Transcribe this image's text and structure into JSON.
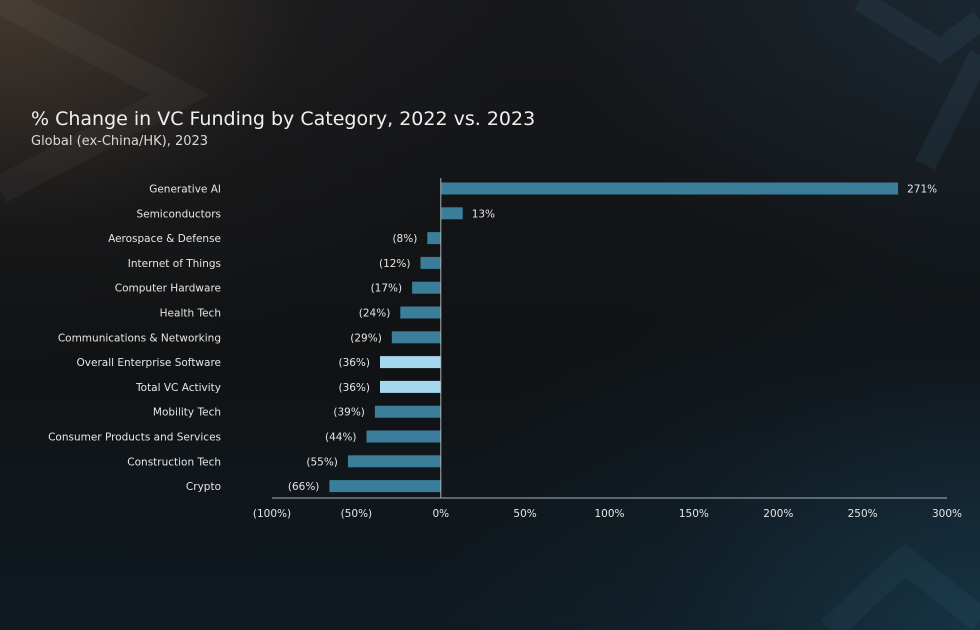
{
  "header": {
    "title": "% Change in VC Funding by Category, 2022 vs. 2023",
    "subtitle": "Global (ex-China/HK), 2023"
  },
  "colors": {
    "bar": "#3a7e9a",
    "highlight_bar": "#a6d8ef",
    "axis": "#a9b3b8",
    "text": "#e6e6e6"
  },
  "chart_data": {
    "type": "bar",
    "orientation": "horizontal",
    "title": "% Change in VC Funding by Category, 2022 vs. 2023",
    "subtitle": "Global (ex-China/HK), 2023",
    "categories": [
      "Generative AI",
      "Semiconductors",
      "Aerospace & Defense",
      "Internet of Things",
      "Computer Hardware",
      "Health Tech",
      "Communications & Networking",
      "Overall Enterprise Software",
      "Total VC Activity",
      "Mobility Tech",
      "Consumer Products and Services",
      "Construction Tech",
      "Crypto"
    ],
    "values": [
      271,
      13,
      -8,
      -12,
      -17,
      -24,
      -29,
      -36,
      -36,
      -39,
      -44,
      -55,
      -66
    ],
    "data_labels": [
      "271%",
      "13%",
      "(8%)",
      "(12%)",
      "(17%)",
      "(24%)",
      "(29%)",
      "(36%)",
      "(36%)",
      "(39%)",
      "(44%)",
      "(55%)",
      "(66%)"
    ],
    "highlighted": [
      "Overall Enterprise Software",
      "Total VC Activity"
    ],
    "xlim": [
      -100,
      300
    ],
    "xticks": [
      -100,
      -50,
      0,
      50,
      100,
      150,
      200,
      250,
      300
    ],
    "xtick_labels": [
      "(100%)",
      "(50%)",
      "0%",
      "50%",
      "100%",
      "150%",
      "200%",
      "250%",
      "300%"
    ],
    "xlabel": "",
    "ylabel": "",
    "grid": false,
    "legend": "none"
  }
}
